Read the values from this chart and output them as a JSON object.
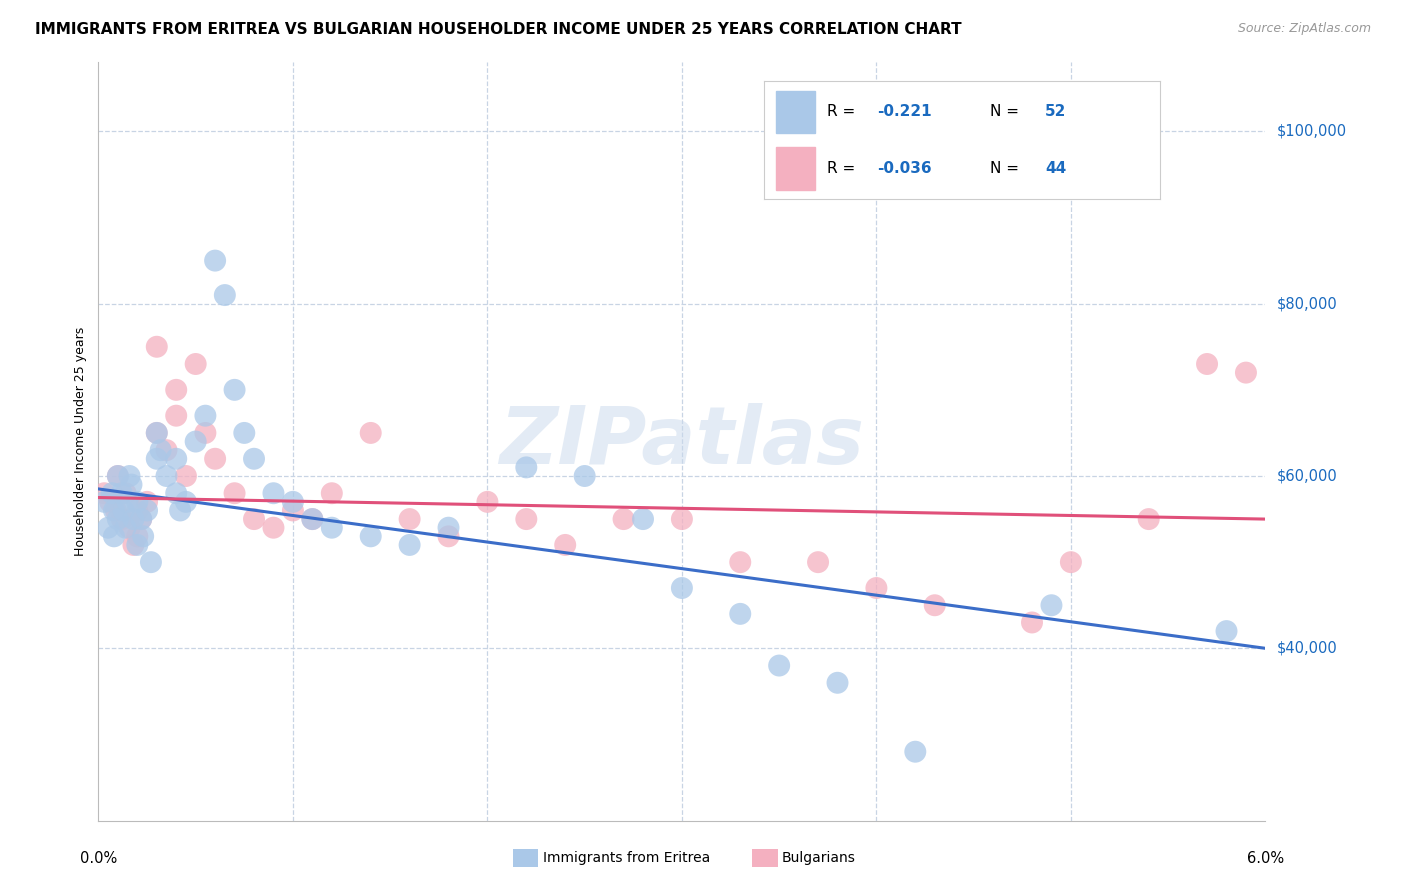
{
  "title": "IMMIGRANTS FROM ERITREA VS BULGARIAN HOUSEHOLDER INCOME UNDER 25 YEARS CORRELATION CHART",
  "source": "Source: ZipAtlas.com",
  "ylabel": "Householder Income Under 25 years",
  "yticks": [
    40000,
    60000,
    80000,
    100000
  ],
  "ytick_labels": [
    "$40,000",
    "$60,000",
    "$80,000",
    "$100,000"
  ],
  "xmin": 0.0,
  "xmax": 0.06,
  "ymin": 20000,
  "ymax": 108000,
  "bottom_legend": [
    "Immigrants from Eritrea",
    "Bulgarians"
  ],
  "bottom_legend_colors": [
    "#aac8e8",
    "#f4b0c0"
  ],
  "eritrea_color": "#aac8e8",
  "bulgarian_color": "#f4b0c0",
  "eritrea_line_color": "#3b6dc8",
  "bulgarian_line_color": "#e0507a",
  "legend_text_color": "#1a6abf",
  "legend_r2_color": "#e0507a",
  "eritrea_R": -0.221,
  "eritrea_N": 52,
  "bulgarian_R": -0.036,
  "bulgarian_N": 44,
  "eritrea_x": [
    0.0003,
    0.0005,
    0.0007,
    0.0008,
    0.0008,
    0.001,
    0.001,
    0.0012,
    0.0013,
    0.0014,
    0.0015,
    0.0016,
    0.0017,
    0.0018,
    0.002,
    0.002,
    0.0022,
    0.0023,
    0.0025,
    0.0027,
    0.003,
    0.003,
    0.0032,
    0.0035,
    0.004,
    0.004,
    0.0042,
    0.0045,
    0.005,
    0.0055,
    0.006,
    0.0065,
    0.007,
    0.0075,
    0.008,
    0.009,
    0.01,
    0.011,
    0.012,
    0.014,
    0.016,
    0.018,
    0.022,
    0.025,
    0.028,
    0.03,
    0.033,
    0.035,
    0.038,
    0.042,
    0.049,
    0.058
  ],
  "eritrea_y": [
    57000,
    54000,
    58000,
    56000,
    53000,
    55000,
    60000,
    58000,
    56000,
    54000,
    57000,
    60000,
    59000,
    55000,
    57000,
    52000,
    55000,
    53000,
    56000,
    50000,
    65000,
    62000,
    63000,
    60000,
    62000,
    58000,
    56000,
    57000,
    64000,
    67000,
    85000,
    81000,
    70000,
    65000,
    62000,
    58000,
    57000,
    55000,
    54000,
    53000,
    52000,
    54000,
    61000,
    60000,
    55000,
    47000,
    44000,
    38000,
    36000,
    28000,
    45000,
    42000
  ],
  "bulgarian_x": [
    0.0003,
    0.0006,
    0.0009,
    0.001,
    0.0012,
    0.0014,
    0.0016,
    0.0018,
    0.002,
    0.002,
    0.0022,
    0.0025,
    0.003,
    0.003,
    0.0035,
    0.004,
    0.004,
    0.0045,
    0.005,
    0.0055,
    0.006,
    0.007,
    0.008,
    0.009,
    0.01,
    0.011,
    0.012,
    0.014,
    0.016,
    0.018,
    0.02,
    0.022,
    0.024,
    0.027,
    0.03,
    0.033,
    0.037,
    0.04,
    0.043,
    0.048,
    0.05,
    0.054,
    0.057,
    0.059
  ],
  "bulgarian_y": [
    58000,
    57000,
    56000,
    60000,
    55000,
    58000,
    54000,
    52000,
    56000,
    53000,
    55000,
    57000,
    75000,
    65000,
    63000,
    70000,
    67000,
    60000,
    73000,
    65000,
    62000,
    58000,
    55000,
    54000,
    56000,
    55000,
    58000,
    65000,
    55000,
    53000,
    57000,
    55000,
    52000,
    55000,
    55000,
    50000,
    50000,
    47000,
    45000,
    43000,
    50000,
    55000,
    73000,
    72000
  ],
  "watermark": "ZIPatlas",
  "background_color": "#ffffff",
  "grid_color": "#c8d4e4",
  "title_fontsize": 11,
  "axis_label_fontsize": 9,
  "tick_fontsize": 10.5
}
